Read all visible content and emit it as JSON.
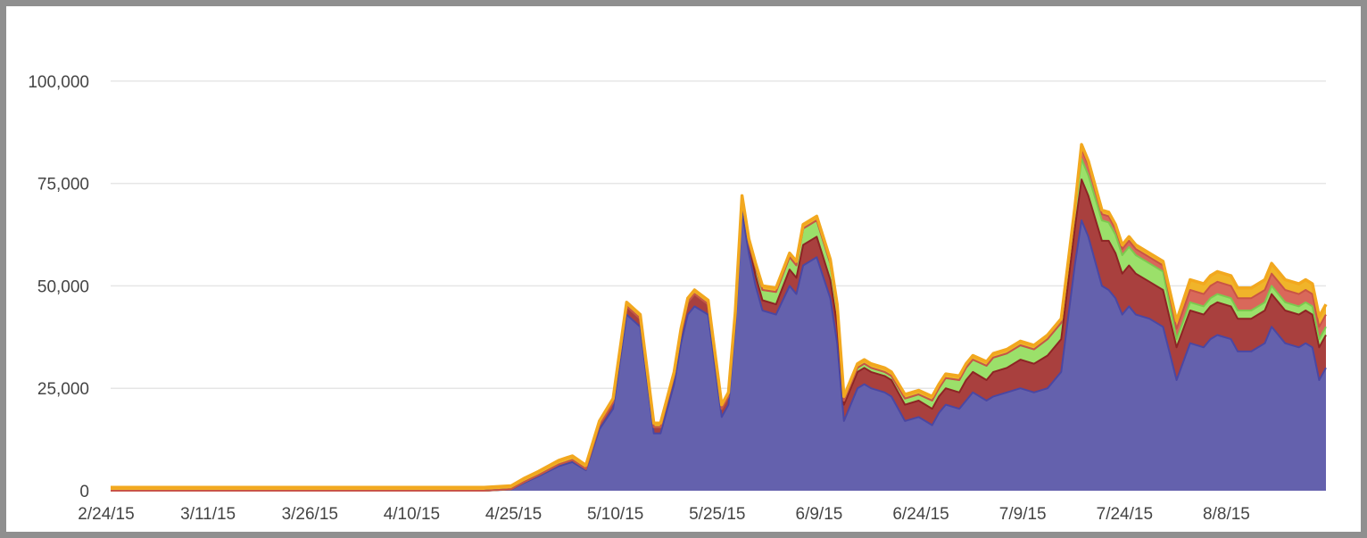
{
  "chart_data": {
    "type": "area",
    "stacked": true,
    "title": "",
    "xlabel": "",
    "ylabel": "",
    "ylim": [
      0,
      115000
    ],
    "y_ticks": [
      "0",
      "25,000",
      "50,000",
      "75,000",
      "100,000"
    ],
    "y_tick_values": [
      0,
      25000,
      50000,
      75000,
      100000
    ],
    "x_tick_labels": [
      "2/24/15",
      "3/11/15",
      "3/26/15",
      "4/10/15",
      "4/25/15",
      "5/10/15",
      "5/25/15",
      "6/9/15",
      "6/24/15",
      "7/9/15",
      "7/24/15",
      "8/8/15"
    ],
    "x_tick_days": [
      0,
      15,
      30,
      45,
      60,
      75,
      90,
      105,
      120,
      135,
      150,
      165
    ],
    "x_day_range": [
      0,
      179
    ],
    "grid": true,
    "legend": "none",
    "series_colors": [
      "#6461ad",
      "#a9403e",
      "#9be06a",
      "#d9685a",
      "#f0b42a"
    ],
    "x": [
      0,
      55,
      59,
      61,
      63,
      66,
      68,
      70,
      72,
      74,
      76,
      78,
      80,
      81,
      83,
      84,
      85,
      86,
      88,
      90,
      91,
      92,
      93,
      94,
      95,
      96,
      98,
      100,
      101,
      102,
      104,
      106,
      107,
      108,
      110,
      111,
      112,
      114,
      115,
      117,
      119,
      121,
      122,
      123,
      125,
      126,
      127,
      129,
      130,
      132,
      134,
      136,
      138,
      140,
      142,
      143,
      144,
      146,
      147,
      148,
      149,
      150,
      151,
      153,
      155,
      157,
      159,
      161,
      162,
      163,
      165,
      166,
      168,
      170,
      171,
      173,
      175,
      176,
      177,
      178,
      179
    ],
    "series": [
      {
        "values": [
          0,
          0,
          300,
          2000,
          3500,
          6000,
          7000,
          5000,
          15000,
          20000,
          43000,
          40000,
          14000,
          14000,
          26000,
          36000,
          43000,
          45000,
          43000,
          18000,
          21000,
          40000,
          68000,
          58000,
          50000,
          44000,
          43000,
          50000,
          48000,
          55000,
          57000,
          47000,
          36000,
          17000,
          25000,
          26000,
          25000,
          24000,
          23000,
          17000,
          18000,
          16000,
          19000,
          21000,
          20000,
          22000,
          24000,
          22000,
          23000,
          24000,
          25000,
          24000,
          25000,
          29000,
          55000,
          66000,
          62000,
          50000,
          49000,
          47000,
          43000,
          45000,
          43000,
          42000,
          40000,
          27000,
          36000,
          35000,
          37000,
          38000,
          37000,
          34000,
          34000,
          36000,
          40000,
          36000,
          35000,
          36000,
          35000,
          27000,
          30000
        ]
      },
      {
        "values": [
          0,
          0,
          100,
          200,
          300,
          400,
          500,
          300,
          1000,
          1500,
          2000,
          2000,
          1500,
          1500,
          2000,
          2500,
          3000,
          3000,
          2500,
          2000,
          2000,
          2500,
          3000,
          2500,
          2500,
          2500,
          2500,
          4000,
          4000,
          5000,
          5000,
          4500,
          4500,
          4000,
          4000,
          4000,
          4000,
          4000,
          4000,
          4000,
          4000,
          4000,
          4000,
          4000,
          4000,
          5000,
          5000,
          5000,
          6000,
          6000,
          7000,
          7000,
          8000,
          8000,
          9000,
          10000,
          10000,
          11000,
          12000,
          11000,
          10000,
          10000,
          10000,
          9000,
          9000,
          8000,
          8000,
          8000,
          8000,
          8000,
          8000,
          8000,
          8000,
          8000,
          8000,
          8000,
          8000,
          8000,
          8000,
          8000,
          8000
        ]
      },
      {
        "values": [
          0,
          0,
          0,
          0,
          0,
          0,
          0,
          0,
          0,
          0,
          0,
          0,
          0,
          0,
          0,
          0,
          0,
          0,
          0,
          0,
          0,
          0,
          0,
          0,
          2000,
          2500,
          3000,
          3000,
          3000,
          4000,
          4000,
          4000,
          4000,
          1000,
          1000,
          1000,
          1000,
          1000,
          1000,
          1500,
          1500,
          2000,
          2000,
          2500,
          3000,
          3000,
          3000,
          3500,
          3500,
          3500,
          3500,
          3500,
          4000,
          4000,
          4000,
          5000,
          5000,
          5000,
          4500,
          4500,
          4500,
          4500,
          4500,
          4500,
          4500,
          2000,
          2000,
          2000,
          2000,
          2000,
          2000,
          2000,
          2000,
          2000,
          2000,
          2000,
          2000,
          2000,
          2000,
          2000,
          2000
        ]
      },
      {
        "values": [
          0,
          0,
          0,
          0,
          0,
          0,
          0,
          0,
          0,
          0,
          0,
          0,
          0,
          0,
          0,
          0,
          0,
          0,
          0,
          0,
          0,
          0,
          0,
          0,
          0,
          0,
          0,
          0,
          0,
          0,
          0,
          0,
          0,
          0,
          0,
          0,
          0,
          0,
          0,
          0,
          0,
          0,
          0,
          0,
          0,
          0,
          0,
          0,
          0,
          0,
          0,
          0,
          0,
          0,
          0,
          2500,
          2500,
          1500,
          1500,
          1500,
          1500,
          1500,
          1500,
          1500,
          1500,
          2500,
          3000,
          3000,
          3000,
          3000,
          3000,
          3000,
          3000,
          3000,
          3000,
          3000,
          3000,
          3000,
          3000,
          3000,
          3000
        ]
      },
      {
        "values": [
          800,
          800,
          800,
          900,
          900,
          1000,
          1000,
          900,
          1000,
          1000,
          1000,
          1000,
          1000,
          1000,
          1000,
          1000,
          1000,
          1000,
          1000,
          1000,
          1000,
          1000,
          1000,
          1000,
          1000,
          1000,
          1000,
          1000,
          1000,
          1000,
          1000,
          1000,
          1000,
          1000,
          1000,
          1000,
          1000,
          1000,
          1000,
          1000,
          1000,
          1000,
          1000,
          1000,
          1000,
          1000,
          1000,
          1000,
          1000,
          1000,
          1000,
          1000,
          1000,
          1000,
          1000,
          1000,
          1000,
          1000,
          1000,
          1000,
          1000,
          1000,
          1000,
          1000,
          1000,
          2000,
          2500,
          2500,
          2500,
          2500,
          2500,
          2500,
          2500,
          2500,
          2500,
          2500,
          2500,
          2500,
          2500,
          2500,
          2500
        ]
      }
    ]
  }
}
